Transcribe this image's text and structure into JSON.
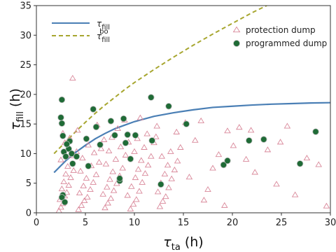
{
  "chart_data": {
    "type": "scatter",
    "xlabel": {
      "symbol": "τ",
      "sub": "ta",
      "unit": " (h)"
    },
    "ylabel": {
      "symbol": "τ",
      "sub": "fill",
      "unit": " (h)"
    },
    "xlim": [
      0,
      30
    ],
    "ylim": [
      0,
      35
    ],
    "xticks": [
      0,
      5,
      10,
      15,
      20,
      25,
      30
    ],
    "yticks": [
      0,
      5,
      10,
      15,
      20,
      25,
      30,
      35
    ],
    "grid": false,
    "legend_left": [
      {
        "symbol": "τ",
        "sub": "fill",
        "sup": "",
        "style": "solid",
        "color": "#4a7fb5"
      },
      {
        "symbol": "τ",
        "sub": "fill",
        "sup": "bo",
        "style": "dashed",
        "color": "#a7a62f"
      }
    ],
    "legend_right": [
      {
        "label": "protection dump",
        "marker": "triangle",
        "color": "#d9889a"
      },
      {
        "label": "programmed dump",
        "marker": "circle",
        "color": "#1f6b36"
      }
    ],
    "curves": [
      {
        "name": "fill",
        "color": "#4a7fb5",
        "style": "solid",
        "x": [
          1.8,
          3,
          4,
          5,
          6,
          7,
          8,
          9,
          10,
          12,
          14,
          16,
          18,
          20,
          22,
          24,
          26,
          28,
          30
        ],
        "y": [
          6.8,
          8.8,
          10.2,
          11.4,
          12.5,
          13.4,
          14.2,
          14.8,
          15.4,
          16.3,
          16.9,
          17.4,
          17.8,
          18.0,
          18.2,
          18.35,
          18.45,
          18.55,
          18.6
        ]
      },
      {
        "name": "fill-bo",
        "color": "#a7a62f",
        "style": "dashed",
        "x": [
          1.8,
          3,
          4,
          5,
          6,
          7,
          8,
          9,
          10,
          11,
          12,
          14,
          16,
          18,
          20,
          22,
          23.5
        ],
        "y": [
          10.0,
          12.0,
          13.7,
          15.3,
          16.8,
          18.2,
          19.5,
          20.8,
          22.0,
          23.1,
          24.2,
          26.3,
          28.3,
          30.2,
          32.0,
          33.8,
          35.0
        ]
      }
    ],
    "series": [
      {
        "name": "protection dump",
        "marker": "triangle",
        "color": "#d9889a",
        "points": [
          [
            2.3,
            0.3
          ],
          [
            2.5,
            0.9
          ],
          [
            2.7,
            1.5
          ],
          [
            2.4,
            2.2
          ],
          [
            2.9,
            2.8
          ],
          [
            3.1,
            3.4
          ],
          [
            2.6,
            4.0
          ],
          [
            3.3,
            4.6
          ],
          [
            2.8,
            5.2
          ],
          [
            3.5,
            5.9
          ],
          [
            3.0,
            6.5
          ],
          [
            3.8,
            7.1
          ],
          [
            3.2,
            7.8
          ],
          [
            2.5,
            8.9
          ],
          [
            3.6,
            9.6
          ],
          [
            4.1,
            10.3
          ],
          [
            2.9,
            11.8
          ],
          [
            3.4,
            12.6
          ],
          [
            3.7,
            22.7
          ],
          [
            2.7,
            13.4
          ],
          [
            4.3,
            0.5
          ],
          [
            4.6,
            1.2
          ],
          [
            4.9,
            2.0
          ],
          [
            5.2,
            2.6
          ],
          [
            4.4,
            3.3
          ],
          [
            5.5,
            3.9
          ],
          [
            4.8,
            4.5
          ],
          [
            5.8,
            5.1
          ],
          [
            5.1,
            5.8
          ],
          [
            6.1,
            6.4
          ],
          [
            4.5,
            7.0
          ],
          [
            5.6,
            7.9
          ],
          [
            6.4,
            8.5
          ],
          [
            4.7,
            9.2
          ],
          [
            5.9,
            10.1
          ],
          [
            6.6,
            10.8
          ],
          [
            5.3,
            11.4
          ],
          [
            6.9,
            12.3
          ],
          [
            4.2,
            13.9
          ],
          [
            6.2,
            14.8
          ],
          [
            7.0,
            0.8
          ],
          [
            7.3,
            1.6
          ],
          [
            7.6,
            2.4
          ],
          [
            6.8,
            3.1
          ],
          [
            7.9,
            3.7
          ],
          [
            7.2,
            4.3
          ],
          [
            8.2,
            4.9
          ],
          [
            7.5,
            5.6
          ],
          [
            8.5,
            6.2
          ],
          [
            7.8,
            6.9
          ],
          [
            8.8,
            7.5
          ],
          [
            7.1,
            8.2
          ],
          [
            8.1,
            9.0
          ],
          [
            9.1,
            9.7
          ],
          [
            7.4,
            10.4
          ],
          [
            8.6,
            11.1
          ],
          [
            9.4,
            11.9
          ],
          [
            7.7,
            12.7
          ],
          [
            8.3,
            14.2
          ],
          [
            9.0,
            15.6
          ],
          [
            9.6,
            0.6
          ],
          [
            9.9,
            1.4
          ],
          [
            10.2,
            2.2
          ],
          [
            9.3,
            2.9
          ],
          [
            10.5,
            3.6
          ],
          [
            9.7,
            4.4
          ],
          [
            10.8,
            5.1
          ],
          [
            10.1,
            5.9
          ],
          [
            11.1,
            6.6
          ],
          [
            10.4,
            7.3
          ],
          [
            11.4,
            8.0
          ],
          [
            10.7,
            8.8
          ],
          [
            11.7,
            9.5
          ],
          [
            10.0,
            10.3
          ],
          [
            11.0,
            11.0
          ],
          [
            12.0,
            11.8
          ],
          [
            10.3,
            12.5
          ],
          [
            11.3,
            13.3
          ],
          [
            12.3,
            14.6
          ],
          [
            10.6,
            16.0
          ],
          [
            12.6,
            1.0
          ],
          [
            12.9,
            1.9
          ],
          [
            13.2,
            2.7
          ],
          [
            12.4,
            3.5
          ],
          [
            13.5,
            4.2
          ],
          [
            12.7,
            5.0
          ],
          [
            13.8,
            5.7
          ],
          [
            13.1,
            6.5
          ],
          [
            14.1,
            7.2
          ],
          [
            13.4,
            8.0
          ],
          [
            14.4,
            8.7
          ],
          [
            12.8,
            9.5
          ],
          [
            13.7,
            10.3
          ],
          [
            14.7,
            11.0
          ],
          [
            12.2,
            12.8
          ],
          [
            14.3,
            13.6
          ],
          [
            15.2,
            15.2
          ],
          [
            15.6,
            6.0
          ],
          [
            16.2,
            12.2
          ],
          [
            16.8,
            15.5
          ],
          [
            17.1,
            2.1
          ],
          [
            17.5,
            3.9
          ],
          [
            18.0,
            7.5
          ],
          [
            18.6,
            9.8
          ],
          [
            19.2,
            1.2
          ],
          [
            19.5,
            13.8
          ],
          [
            20.1,
            11.3
          ],
          [
            20.7,
            14.4
          ],
          [
            21.4,
            9.0
          ],
          [
            22.3,
            6.8
          ],
          [
            23.6,
            10.6
          ],
          [
            24.5,
            4.8
          ],
          [
            25.6,
            14.6
          ],
          [
            26.4,
            3.0
          ],
          [
            27.6,
            9.2
          ],
          [
            28.8,
            8.1
          ],
          [
            29.6,
            1.1
          ],
          [
            21.9,
            13.9
          ],
          [
            24.9,
            11.9
          ]
        ]
      },
      {
        "name": "programmed dump",
        "marker": "circle",
        "color": "#1f6b36",
        "points": [
          [
            2.6,
            19.1
          ],
          [
            2.5,
            16.1
          ],
          [
            2.6,
            15.1
          ],
          [
            2.7,
            13.0
          ],
          [
            2.8,
            10.3
          ],
          [
            3.0,
            9.5
          ],
          [
            3.3,
            10.8
          ],
          [
            3.6,
            10.0
          ],
          [
            3.7,
            8.3
          ],
          [
            3.4,
            12.1
          ],
          [
            2.7,
            3.0
          ],
          [
            2.6,
            2.6
          ],
          [
            2.9,
            1.8
          ],
          [
            3.1,
            11.6
          ],
          [
            4.1,
            9.5
          ],
          [
            5.1,
            12.5
          ],
          [
            5.3,
            7.9
          ],
          [
            5.8,
            17.5
          ],
          [
            6.1,
            14.5
          ],
          [
            6.5,
            11.5
          ],
          [
            7.6,
            15.5
          ],
          [
            8.0,
            13.1
          ],
          [
            8.5,
            5.4
          ],
          [
            8.5,
            5.8
          ],
          [
            8.9,
            15.9
          ],
          [
            9.1,
            11.8
          ],
          [
            9.3,
            13.2
          ],
          [
            9.6,
            9.1
          ],
          [
            10.1,
            13.1
          ],
          [
            11.7,
            19.5
          ],
          [
            11.8,
            12.2
          ],
          [
            12.7,
            4.8
          ],
          [
            13.5,
            18.0
          ],
          [
            15.3,
            15.0
          ],
          [
            19.1,
            8.1
          ],
          [
            19.5,
            8.8
          ],
          [
            21.7,
            12.2
          ],
          [
            23.2,
            12.4
          ],
          [
            26.9,
            8.3
          ],
          [
            28.5,
            13.7
          ]
        ]
      }
    ]
  }
}
